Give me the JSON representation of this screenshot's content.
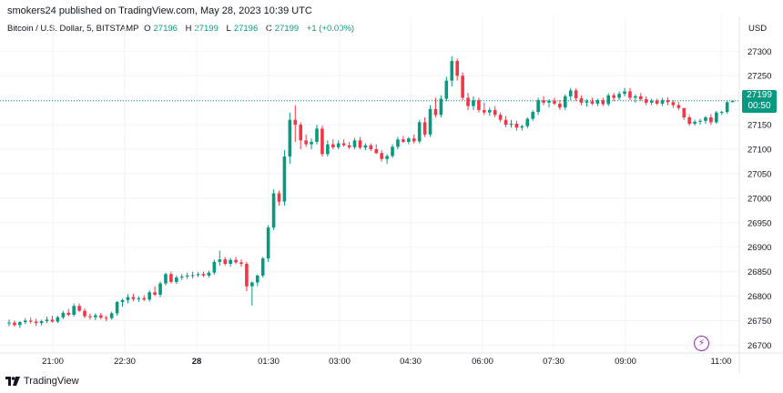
{
  "header": {
    "published": "smokers24 published on TradingView.com, May 28, 2023 10:39 UTC"
  },
  "legend": {
    "symbol": "Bitcoin / U.S. Dollar, 5, BITSTAMP",
    "open_label": "O",
    "open": "27196",
    "high_label": "H",
    "high": "27199",
    "low_label": "L",
    "low": "27196",
    "close_label": "C",
    "close": "27199",
    "change": "+1 (+0.00%)"
  },
  "currency": "USD",
  "price_tag": {
    "price": "27199",
    "countdown": "00:50"
  },
  "footer": {
    "brand": "TradingView"
  },
  "colors": {
    "up": "#089981",
    "down": "#f23645",
    "grid": "#f0f3fa",
    "current_line": "#089981"
  },
  "chart_data": {
    "type": "candlestick",
    "y_ticks": [
      27300,
      27250,
      27200,
      27150,
      27100,
      27050,
      27000,
      26950,
      26900,
      26850,
      26800,
      26750,
      26700
    ],
    "y_tick_labels": [
      "27300",
      "27250",
      "27200",
      "27150",
      "27100",
      "27050",
      "27000",
      "26950",
      "26900",
      "26850",
      "26800",
      "26750",
      "26700"
    ],
    "ylim": [
      26684,
      27334
    ],
    "x_tick_labels": [
      "21:00",
      "22:30",
      "28",
      "01:30",
      "03:00",
      "04:30",
      "06:00",
      "07:30",
      "09:00",
      "11:00"
    ],
    "x_tick_bold": [
      false,
      false,
      true,
      false,
      false,
      false,
      false,
      false,
      false,
      false
    ],
    "current_price": 27199,
    "ohlc": [
      [
        26745,
        26752,
        26739,
        26746
      ],
      [
        26746,
        26750,
        26738,
        26741
      ],
      [
        26741,
        26749,
        26735,
        26747
      ],
      [
        26747,
        26755,
        26743,
        26750
      ],
      [
        26750,
        26756,
        26744,
        26748
      ],
      [
        26748,
        26754,
        26739,
        26745
      ],
      [
        26745,
        26752,
        26740,
        26749
      ],
      [
        26749,
        26758,
        26745,
        26752
      ],
      [
        26752,
        26760,
        26746,
        26748
      ],
      [
        26748,
        26760,
        26745,
        26757
      ],
      [
        26757,
        26770,
        26753,
        26766
      ],
      [
        26766,
        26774,
        26758,
        26762
      ],
      [
        26762,
        26785,
        26758,
        26780
      ],
      [
        26780,
        26785,
        26768,
        26770
      ],
      [
        26770,
        26775,
        26755,
        26759
      ],
      [
        26759,
        26764,
        26752,
        26757
      ],
      [
        26757,
        26765,
        26751,
        26761
      ],
      [
        26761,
        26766,
        26753,
        26756
      ],
      [
        26756,
        26760,
        26749,
        26755
      ],
      [
        26755,
        26768,
        26752,
        26765
      ],
      [
        26765,
        26790,
        26760,
        26788
      ],
      [
        26788,
        26795,
        26778,
        26792
      ],
      [
        26792,
        26804,
        26785,
        26798
      ],
      [
        26798,
        26805,
        26790,
        26794
      ],
      [
        26794,
        26800,
        26788,
        26796
      ],
      [
        26796,
        26802,
        26790,
        26793
      ],
      [
        26793,
        26812,
        26789,
        26808
      ],
      [
        26808,
        26820,
        26800,
        26803
      ],
      [
        26803,
        26830,
        26798,
        26826
      ],
      [
        26826,
        26848,
        26822,
        26845
      ],
      [
        26845,
        26850,
        26826,
        26829
      ],
      [
        26829,
        26842,
        26825,
        26838
      ],
      [
        26838,
        26845,
        26833,
        26840
      ],
      [
        26840,
        26848,
        26835,
        26842
      ],
      [
        26842,
        26850,
        26836,
        26843
      ],
      [
        26843,
        26849,
        26839,
        26845
      ],
      [
        26845,
        26850,
        26839,
        26842
      ],
      [
        26842,
        26852,
        26838,
        26848
      ],
      [
        26848,
        26875,
        26844,
        26870
      ],
      [
        26870,
        26893,
        26862,
        26875
      ],
      [
        26875,
        26880,
        26862,
        26866
      ],
      [
        26866,
        26878,
        26860,
        26874
      ],
      [
        26874,
        26880,
        26865,
        26869
      ],
      [
        26869,
        26875,
        26860,
        26866
      ],
      [
        26866,
        26870,
        26810,
        26820
      ],
      [
        26820,
        26830,
        26781,
        26828
      ],
      [
        26828,
        26844,
        26820,
        26842
      ],
      [
        26842,
        26880,
        26838,
        26877
      ],
      [
        26877,
        26945,
        26870,
        26940
      ],
      [
        26940,
        27018,
        26935,
        27010
      ],
      [
        27010,
        27015,
        26985,
        26993
      ],
      [
        26993,
        27098,
        26985,
        27085
      ],
      [
        27085,
        27175,
        27070,
        27160
      ],
      [
        27160,
        27190,
        27115,
        27150
      ],
      [
        27150,
        27155,
        27100,
        27118
      ],
      [
        27118,
        27130,
        27105,
        27110
      ],
      [
        27110,
        27122,
        27100,
        27115
      ],
      [
        27115,
        27150,
        27110,
        27142
      ],
      [
        27142,
        27148,
        27085,
        27090
      ],
      [
        27090,
        27118,
        27085,
        27110
      ],
      [
        27110,
        27120,
        27100,
        27104
      ],
      [
        27104,
        27118,
        27100,
        27112
      ],
      [
        27112,
        27120,
        27105,
        27108
      ],
      [
        27108,
        27115,
        27100,
        27104
      ],
      [
        27104,
        27123,
        27100,
        27118
      ],
      [
        27118,
        27125,
        27100,
        27103
      ],
      [
        27103,
        27112,
        27098,
        27108
      ],
      [
        27108,
        27112,
        27096,
        27100
      ],
      [
        27100,
        27110,
        27090,
        27092
      ],
      [
        27092,
        27098,
        27075,
        27080
      ],
      [
        27080,
        27090,
        27070,
        27086
      ],
      [
        27086,
        27110,
        27082,
        27105
      ],
      [
        27105,
        27125,
        27100,
        27120
      ],
      [
        27120,
        27127,
        27113,
        27115
      ],
      [
        27115,
        27125,
        27110,
        27122
      ],
      [
        27122,
        27130,
        27112,
        27116
      ],
      [
        27116,
        27160,
        27112,
        27155
      ],
      [
        27155,
        27165,
        27125,
        27130
      ],
      [
        27130,
        27190,
        27125,
        27182
      ],
      [
        27182,
        27205,
        27165,
        27170
      ],
      [
        27170,
        27210,
        27165,
        27203
      ],
      [
        27203,
        27248,
        27198,
        27240
      ],
      [
        27240,
        27290,
        27228,
        27280
      ],
      [
        27280,
        27285,
        27240,
        27250
      ],
      [
        27250,
        27257,
        27200,
        27205
      ],
      [
        27205,
        27215,
        27180,
        27188
      ],
      [
        27188,
        27208,
        27180,
        27200
      ],
      [
        27200,
        27205,
        27175,
        27180
      ],
      [
        27180,
        27195,
        27170,
        27175
      ],
      [
        27175,
        27185,
        27168,
        27180
      ],
      [
        27180,
        27188,
        27165,
        27170
      ],
      [
        27170,
        27175,
        27155,
        27160
      ],
      [
        27160,
        27168,
        27145,
        27150
      ],
      [
        27150,
        27160,
        27144,
        27152
      ],
      [
        27152,
        27158,
        27138,
        27144
      ],
      [
        27144,
        27150,
        27138,
        27147
      ],
      [
        27147,
        27165,
        27143,
        27162
      ],
      [
        27162,
        27180,
        27158,
        27176
      ],
      [
        27176,
        27205,
        27170,
        27200
      ],
      [
        27200,
        27208,
        27190,
        27195
      ],
      [
        27195,
        27202,
        27185,
        27199
      ],
      [
        27199,
        27205,
        27190,
        27193
      ],
      [
        27193,
        27200,
        27180,
        27185
      ],
      [
        27185,
        27212,
        27180,
        27208
      ],
      [
        27208,
        27225,
        27200,
        27220
      ],
      [
        27220,
        27224,
        27198,
        27204
      ],
      [
        27204,
        27210,
        27190,
        27195
      ],
      [
        27195,
        27202,
        27187,
        27198
      ],
      [
        27198,
        27205,
        27190,
        27193
      ],
      [
        27193,
        27203,
        27188,
        27200
      ],
      [
        27200,
        27205,
        27188,
        27192
      ],
      [
        27192,
        27214,
        27188,
        27210
      ],
      [
        27210,
        27215,
        27198,
        27205
      ],
      [
        27205,
        27218,
        27200,
        27213
      ],
      [
        27213,
        27225,
        27208,
        27218
      ],
      [
        27218,
        27225,
        27200,
        27205
      ],
      [
        27205,
        27212,
        27195,
        27208
      ],
      [
        27208,
        27215,
        27198,
        27202
      ],
      [
        27202,
        27208,
        27190,
        27195
      ],
      [
        27195,
        27203,
        27190,
        27199
      ],
      [
        27199,
        27203,
        27190,
        27193
      ],
      [
        27193,
        27205,
        27188,
        27200
      ],
      [
        27200,
        27206,
        27190,
        27196
      ],
      [
        27196,
        27200,
        27185,
        27190
      ],
      [
        27190,
        27196,
        27180,
        27184
      ],
      [
        27184,
        27180,
        27160,
        27165
      ],
      [
        27165,
        27170,
        27148,
        27152
      ],
      [
        27152,
        27160,
        27148,
        27156
      ],
      [
        27156,
        27162,
        27150,
        27158
      ],
      [
        27158,
        27168,
        27152,
        27165
      ],
      [
        27165,
        27172,
        27150,
        27155
      ],
      [
        27155,
        27178,
        27152,
        27175
      ],
      [
        27175,
        27178,
        27170,
        27176
      ],
      [
        27176,
        27199,
        27172,
        27196
      ],
      [
        27196,
        27199,
        27196,
        27199
      ]
    ]
  }
}
